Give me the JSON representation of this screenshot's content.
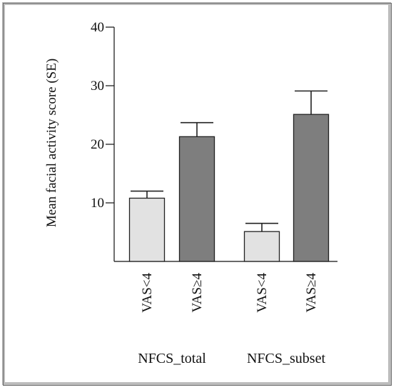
{
  "chart_data": {
    "type": "bar",
    "title": "",
    "xlabel": "",
    "ylabel": "Mean facial activity score (SE)",
    "ylim": [
      0,
      40
    ],
    "yticks": [
      "10",
      "20",
      "30",
      "40"
    ],
    "grid": false,
    "groups": [
      "NFCS_total",
      "NFCS_subset"
    ],
    "categories": [
      "VAS<4",
      "VAS≥4",
      "VAS<4",
      "VAS≥4"
    ],
    "values": [
      10.8,
      21.3,
      5.1,
      25.1
    ],
    "errors": [
      1.2,
      2.4,
      1.4,
      4.0
    ],
    "colors": {
      "low": "#e2e2e2",
      "high": "#7e7e7e",
      "frame": "#bdbdbd"
    }
  }
}
